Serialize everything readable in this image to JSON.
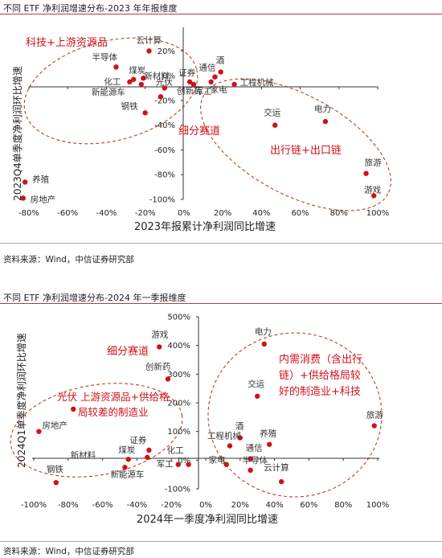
{
  "charts": [
    {
      "title": "不同 ETF 净利润增速分布-2023 年年报维度",
      "source": "资料来源：Wind，中信证券研究部",
      "xlabel": "2023年报累计净利润同比增速",
      "ylabel": "2023Q4单季度净利润环比增速",
      "xticks": [
        "-80%",
        "-60%",
        "-40%",
        "-20%",
        "0%",
        "20%",
        "40%",
        "60%",
        "80%",
        "100%"
      ],
      "yticks": [
        "20%",
        "0%",
        "-20%",
        "-40%",
        "-60%",
        "-80%",
        "-100%"
      ],
      "group_labels": [
        "科技+上游资源品",
        "细分赛道",
        "出行链+出口链"
      ]
    },
    {
      "title": "不同 ETF 净利润增速分布-2024 年一季报维度",
      "source": "资料来源：Wind，中信证券研究部",
      "xlabel": "2024年一季度净利润同比增速",
      "ylabel": "2024Q1单季度净利润环比增速",
      "xticks": [
        "-100%",
        "-80%",
        "-60%",
        "-40%",
        "-20%",
        "0%",
        "20%",
        "40%",
        "60%",
        "80%",
        "100%"
      ],
      "yticks": [
        "500%",
        "400%",
        "300%",
        "200%",
        "100%",
        "0%",
        "-100%"
      ],
      "group_labels": [
        "细分赛道",
        "光伏上游资源品+供给格局较差的制造业",
        "内需消费（含出行链）+供给格局较好的制造业+科技"
      ]
    }
  ],
  "colors": {
    "point": "#d0121b",
    "rule": "#c0392b",
    "ellipse": "#b5451b",
    "group_text": "#d0121b"
  },
  "chart_data": [
    {
      "type": "scatter",
      "title": "不同 ETF 净利润增速分布-2023 年年报维度",
      "xlabel": "2023年报累计净利润同比增速",
      "ylabel": "2023Q4单季度净利润环比增速",
      "xlim": [
        -80,
        100
      ],
      "ylim": [
        -100,
        30
      ],
      "unit": "%",
      "points": [
        {
          "name": "云计算",
          "x": -18,
          "y": 20
        },
        {
          "name": "半导体",
          "x": -35,
          "y": 7
        },
        {
          "name": "化工",
          "x": -28,
          "y": -5
        },
        {
          "name": "煤炭",
          "x": -26,
          "y": -3
        },
        {
          "name": "新材料",
          "x": -21,
          "y": -2
        },
        {
          "name": "新能源车",
          "x": -22,
          "y": -7
        },
        {
          "name": "钢铁",
          "x": -20,
          "y": -30
        },
        {
          "name": "光伏",
          "x": -10,
          "y": -10
        },
        {
          "name": "创新药",
          "x": -12,
          "y": -17
        },
        {
          "name": "证券",
          "x": 3,
          "y": -5
        },
        {
          "name": "军工",
          "x": 5,
          "y": -7
        },
        {
          "name": "通信",
          "x": 16,
          "y": -1
        },
        {
          "name": "家电",
          "x": 14,
          "y": -5
        },
        {
          "name": "酒",
          "x": 19,
          "y": 3
        },
        {
          "name": "工程机械",
          "x": 26,
          "y": -7
        },
        {
          "name": "交运",
          "x": 47,
          "y": -40
        },
        {
          "name": "电力",
          "x": 73,
          "y": -37
        },
        {
          "name": "旅游",
          "x": 94,
          "y": -79
        },
        {
          "name": "游戏",
          "x": 98,
          "y": -97
        },
        {
          "name": "养殖",
          "x": -82,
          "y": -86
        },
        {
          "name": "房地产",
          "x": -83,
          "y": -99
        }
      ]
    },
    {
      "type": "scatter",
      "title": "不同 ETF 净利润增速分布-2024 年一季报维度",
      "xlabel": "2024年一季度净利润同比增速",
      "ylabel": "2024Q1单季度净利润环比增速",
      "xlim": [
        -100,
        100
      ],
      "ylim": [
        -100,
        500
      ],
      "unit": "%",
      "points": [
        {
          "name": "游戏",
          "x": -27,
          "y": 395
        },
        {
          "name": "创新药",
          "x": -22,
          "y": 283
        },
        {
          "name": "光伏",
          "x": -77,
          "y": 178
        },
        {
          "name": "房地产",
          "x": -97,
          "y": 100
        },
        {
          "name": "证券",
          "x": -33,
          "y": 35
        },
        {
          "name": "煤炭",
          "x": -34,
          "y": 10
        },
        {
          "name": "新材料",
          "x": -45,
          "y": 3
        },
        {
          "name": "军工",
          "x": -16,
          "y": -15
        },
        {
          "name": "化工",
          "x": -10,
          "y": -15
        },
        {
          "name": "新能源车",
          "x": -47,
          "y": -25
        },
        {
          "name": "钢铁",
          "x": -87,
          "y": -78
        },
        {
          "name": "电力",
          "x": 34,
          "y": 405
        },
        {
          "name": "交运",
          "x": 30,
          "y": 223
        },
        {
          "name": "旅游",
          "x": 98,
          "y": 120
        },
        {
          "name": "酒",
          "x": 20,
          "y": 78
        },
        {
          "name": "工程机械",
          "x": 14,
          "y": 50
        },
        {
          "name": "家电",
          "x": 12,
          "y": -15
        },
        {
          "name": "通信",
          "x": 26,
          "y": 5
        },
        {
          "name": "养殖",
          "x": 37,
          "y": 55
        },
        {
          "name": "半导体",
          "x": 26,
          "y": -35
        },
        {
          "name": "云计算",
          "x": 44,
          "y": -75
        }
      ]
    }
  ]
}
